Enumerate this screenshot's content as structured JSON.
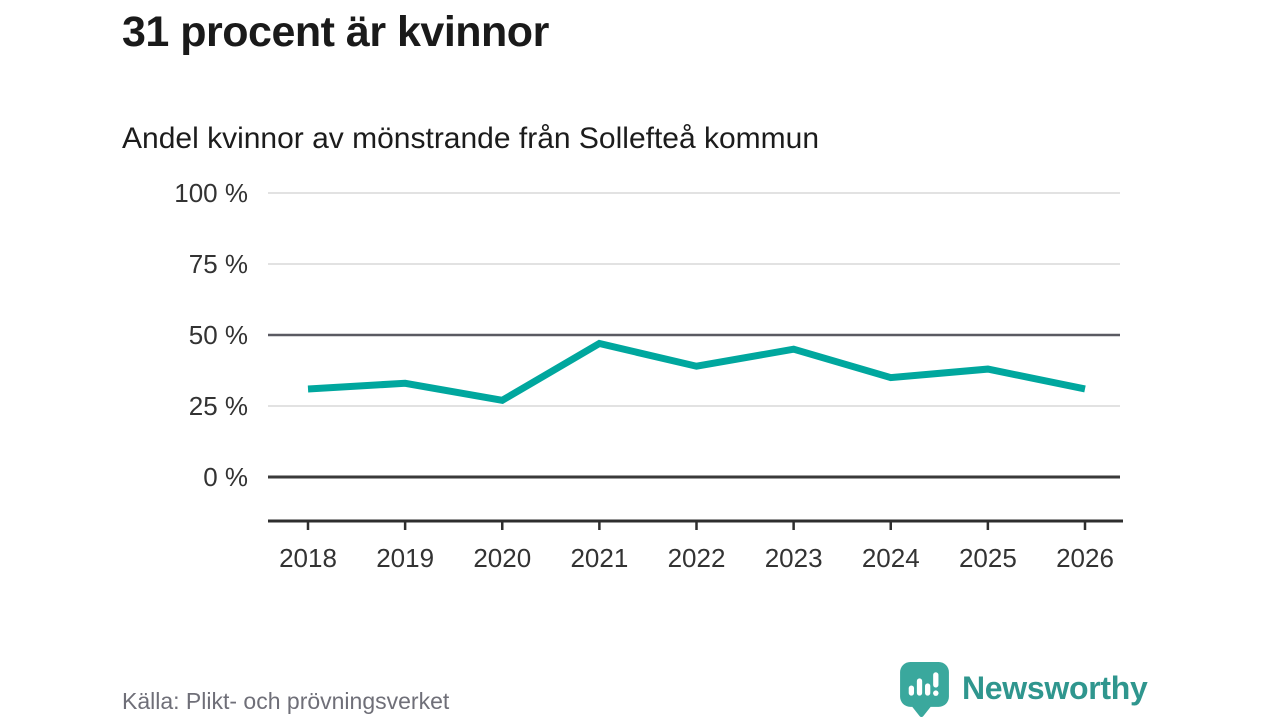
{
  "header": {
    "title": "31 procent är kvinnor",
    "subtitle": "Andel kvinnor av mönstrande från Sollefteå kommun"
  },
  "chart_data": {
    "type": "line",
    "categories": [
      "2018",
      "2019",
      "2020",
      "2021",
      "2022",
      "2023",
      "2024",
      "2025",
      "2026"
    ],
    "values": [
      31,
      33,
      27,
      47,
      39,
      45,
      35,
      38,
      31
    ],
    "series_name": "Andel kvinnor av mönstrande",
    "title": "31 procent är kvinnor",
    "subtitle": "Andel kvinnor av mönstrande från Sollefteå kommun",
    "xlabel": "",
    "ylabel": "",
    "ylim": [
      0,
      100
    ],
    "yticks": [
      0,
      25,
      50,
      75,
      100
    ],
    "ytick_labels": [
      "0 %",
      "25 %",
      "50 %",
      "75 %",
      "100 %"
    ],
    "grid": "horizontal",
    "legend": "none",
    "line_color": "#00a79e",
    "grid_colors": {
      "light": "#e2e2e2",
      "mid": "#5a5a62",
      "zero": "#3a3a3a"
    },
    "mid_gridline_at": 50,
    "axis_color": "#2e2e2e",
    "tick_label_color": "#333333"
  },
  "footer": {
    "source": "Källa: Plikt- och prövningsverket",
    "brand": "Newsworthy"
  },
  "colors": {
    "accent": "#00a79e",
    "brand_text": "#2f968e",
    "brand_bubble": "#3aa89d",
    "title_text": "#1a1a1a",
    "source_text": "#6f6f78"
  }
}
